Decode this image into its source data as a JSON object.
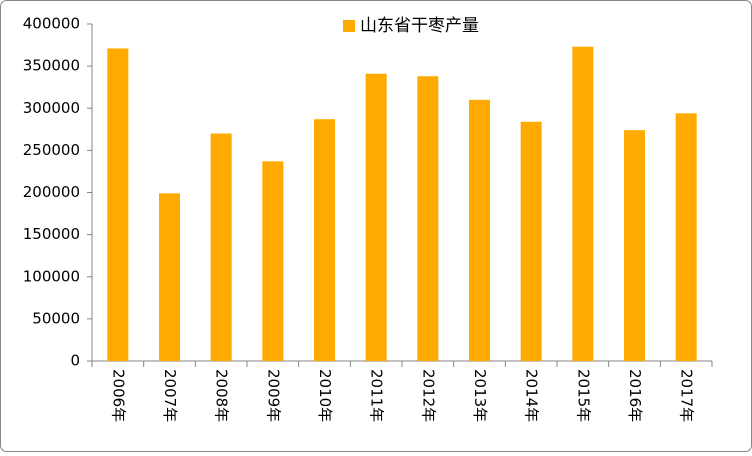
{
  "chart_data": {
    "type": "bar",
    "legend_label": "山东省干枣产量",
    "categories": [
      "2006年",
      "2007年",
      "2008年",
      "2009年",
      "2010年",
      "2011年",
      "2012年",
      "2013年",
      "2014年",
      "2015年",
      "2016年",
      "2017年"
    ],
    "values": [
      371000,
      199000,
      270000,
      237000,
      287000,
      341000,
      338000,
      310000,
      284000,
      373000,
      274000,
      294000
    ],
    "color": "#FFAA00",
    "ylim": [
      0,
      400000
    ],
    "yticks": [
      0,
      50000,
      100000,
      150000,
      200000,
      250000,
      300000,
      350000,
      400000
    ],
    "grid": false,
    "legend_position": "top"
  }
}
